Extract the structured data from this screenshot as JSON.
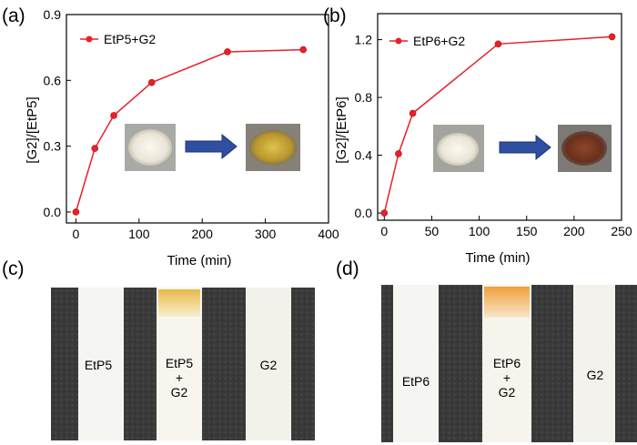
{
  "panels": {
    "a": {
      "label": "(a)"
    },
    "b": {
      "label": "(b)"
    },
    "c": {
      "label": "(c)",
      "strips": {
        "left": "EtP5",
        "mid_top": "EtP5",
        "mid_plus": "+",
        "mid_bottom": "G2",
        "right": "G2"
      }
    },
    "d": {
      "label": "(d)",
      "strips": {
        "left": "EtP6",
        "mid_top": "EtP6",
        "mid_plus": "+",
        "mid_bottom": "G2",
        "right": "G2"
      }
    }
  },
  "colors": {
    "series": "#e8202a",
    "arrow": "#2f4fa0",
    "white_powder": "#efece2",
    "yellow_powder": "#c9a63a",
    "brown_powder": "#7a3a22",
    "fabric": "#3c3c3c",
    "strip": "#f6f6f3",
    "yellow_stain": "#f0c95a",
    "orange_stain": "#f2a64a"
  },
  "chart_data": [
    {
      "type": "line",
      "xlabel": "Time (min)",
      "ylabel": "[G2]/[EtP5]",
      "xlim": [
        -15,
        400
      ],
      "ylim": [
        -0.05,
        0.9
      ],
      "xticks": [
        0,
        100,
        200,
        300,
        400
      ],
      "yticks": [
        0.0,
        0.3,
        0.6,
        0.9
      ],
      "xtick_labels": [
        "0",
        "100",
        "200",
        "300",
        "400"
      ],
      "ytick_labels": [
        "0.0",
        "0.3",
        "0.6",
        "0.9"
      ],
      "grid": false,
      "legend": "top-left",
      "series": [
        {
          "name": "EtP5+G2",
          "x": [
            0,
            30,
            60,
            120,
            240,
            360
          ],
          "y": [
            0.0,
            0.29,
            0.44,
            0.59,
            0.73,
            0.74
          ]
        }
      ]
    },
    {
      "type": "line",
      "xlabel": "Time (min)",
      "ylabel": "[G2]/[EtP6]",
      "xlim": [
        -7,
        250
      ],
      "ylim": [
        -0.05,
        1.38
      ],
      "xticks": [
        0,
        50,
        100,
        150,
        200,
        250
      ],
      "yticks": [
        0.0,
        0.4,
        0.8,
        1.2
      ],
      "xtick_labels": [
        "0",
        "50",
        "100",
        "150",
        "200",
        "250"
      ],
      "ytick_labels": [
        "0.0",
        "0.4",
        "0.8",
        "1.2"
      ],
      "grid": false,
      "legend": "top-left",
      "series": [
        {
          "name": "EtP6+G2",
          "x": [
            0,
            15,
            30,
            120,
            240
          ],
          "y": [
            0.0,
            0.41,
            0.69,
            1.17,
            1.22
          ]
        }
      ]
    }
  ]
}
